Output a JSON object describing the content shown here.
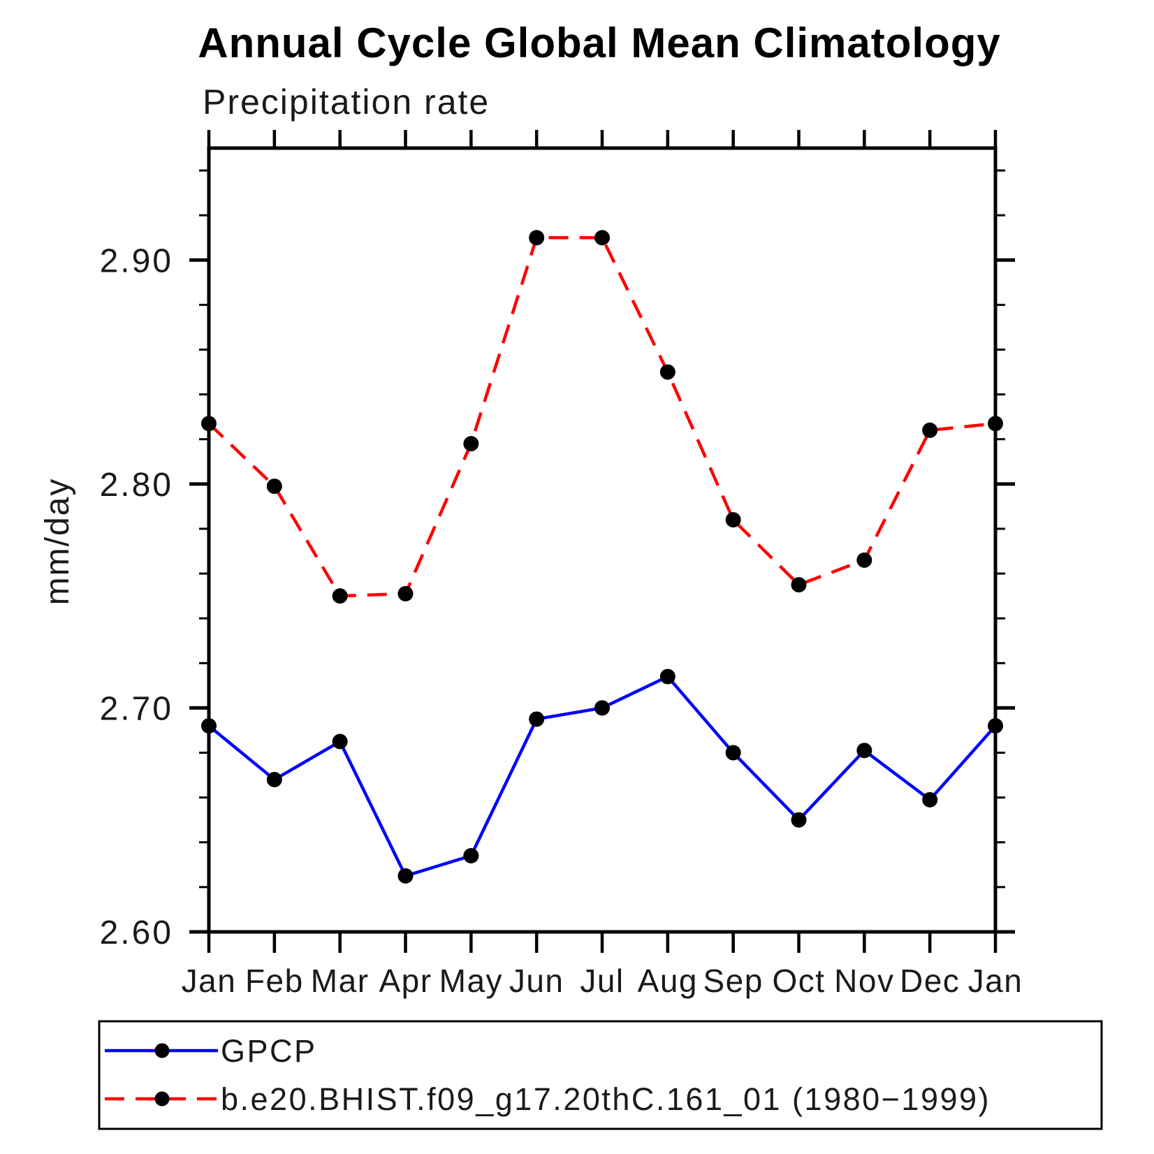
{
  "page": {
    "background": "#ffffff"
  },
  "chart_data": {
    "type": "line",
    "title": "Annual Cycle Global Mean Climatology",
    "subtitle": "Precipitation rate",
    "ylabel": "mm/day",
    "xlabel": "",
    "categories": [
      "Jan",
      "Feb",
      "Mar",
      "Apr",
      "May",
      "Jun",
      "Jul",
      "Aug",
      "Sep",
      "Oct",
      "Nov",
      "Dec",
      "Jan"
    ],
    "series": [
      {
        "name": "GPCP",
        "color": "#0000ff",
        "line_style": "solid",
        "values": [
          2.692,
          2.668,
          2.685,
          2.625,
          2.634,
          2.695,
          2.7,
          2.714,
          2.68,
          2.65,
          2.681,
          2.659,
          2.692
        ]
      },
      {
        "name": "b.e20.BHIST.f09_g17.20thC.161_01 (1980−1999)",
        "color": "#ff0000",
        "line_style": "dashed",
        "values": [
          2.827,
          2.799,
          2.75,
          2.751,
          2.818,
          2.91,
          2.91,
          2.85,
          2.784,
          2.755,
          2.766,
          2.824,
          2.827
        ]
      }
    ],
    "marker_color": "#000000",
    "axis_color": "#000000",
    "ylim": [
      2.6,
      2.95
    ],
    "yticks": [
      "2.60",
      "2.70",
      "2.80",
      "2.90"
    ],
    "y_minor_step": 0.02,
    "grid": false,
    "legend_position": "bottom-left-box"
  }
}
